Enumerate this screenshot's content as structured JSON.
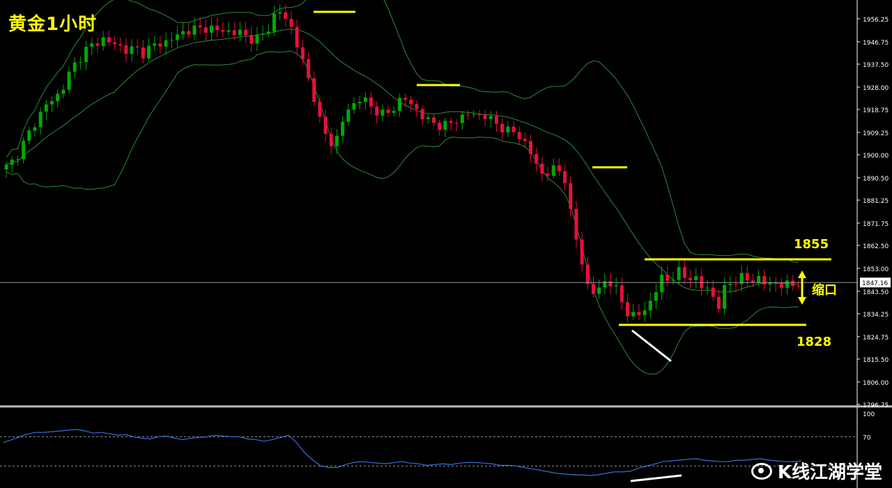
{
  "title": "黄金1小时",
  "watermark": "K线江湖学堂",
  "annotations": {
    "resistance": "1855",
    "support": "1828",
    "squeeze": "缩口"
  },
  "current_price": "1847.16",
  "colors": {
    "bg": "#000000",
    "up": "#00aa00",
    "down": "#e8103a",
    "band": "#2e8b3a",
    "level": "#ffff00",
    "axis": "#ffffff",
    "rsi": "#3a6fd8"
  },
  "chart_data": [
    {
      "type": "candlestick",
      "title": "黄金1小时",
      "y_ticks": [
        "1956.25",
        "1946.75",
        "1937.50",
        "1928.00",
        "1918.75",
        "1909.25",
        "1900.00",
        "1890.50",
        "1881.25",
        "1871.75",
        "1862.50",
        "1853.00",
        "1843.50",
        "1834.25",
        "1824.75",
        "1815.50",
        "1806.00",
        "1796.75"
      ],
      "ylim": [
        1796.75,
        1960
      ],
      "current_price": 1847.16,
      "overlay": "bollinger",
      "levels": [
        {
          "label": "1855",
          "value": 1856
        },
        {
          "label": "1828",
          "value": 1829
        }
      ],
      "price_path": [
        1895,
        1898,
        1904,
        1910,
        1916,
        1921,
        1923,
        1928,
        1935,
        1940,
        1944,
        1946,
        1948,
        1946,
        1945,
        1943,
        1944,
        1942,
        1945,
        1946,
        1947,
        1949,
        1951,
        1952,
        1952,
        1953,
        1951,
        1952,
        1950,
        1951,
        1948,
        1948,
        1950,
        1957,
        1959,
        1955,
        1945,
        1935,
        1925,
        1911,
        1905,
        1907,
        1918,
        1921,
        1924,
        1920,
        1918,
        1916,
        1920,
        1924,
        1921,
        1918,
        1914,
        1913,
        1912,
        1913,
        1915,
        1917,
        1916,
        1917,
        1914,
        1912,
        1910,
        1909,
        1906,
        1900,
        1892,
        1893,
        1894,
        1892,
        1872,
        1858,
        1845,
        1842,
        1848,
        1847,
        1840,
        1834,
        1833,
        1836,
        1841,
        1849,
        1848,
        1852,
        1849,
        1850,
        1845,
        1845,
        1836,
        1846,
        1848,
        1849,
        1848,
        1849,
        1846,
        1847,
        1846,
        1846,
        1847
      ]
    },
    {
      "type": "line",
      "title": "",
      "ylim": [
        0,
        100
      ],
      "y_ticks": [
        "100",
        "70"
      ],
      "levels": [
        70,
        30
      ],
      "values": [
        62,
        66,
        70,
        74,
        76,
        76,
        77,
        78,
        79,
        80,
        78,
        75,
        76,
        74,
        72,
        73,
        70,
        68,
        67,
        70,
        71,
        68,
        66,
        68,
        69,
        70,
        72,
        71,
        70,
        70,
        67,
        66,
        64,
        66,
        69,
        72,
        62,
        48,
        38,
        30,
        28,
        28,
        32,
        35,
        36,
        35,
        34,
        33,
        35,
        36,
        34,
        33,
        31,
        32,
        33,
        32,
        34,
        35,
        35,
        34,
        33,
        31,
        31,
        30,
        28,
        26,
        24,
        22,
        20,
        19,
        18,
        18,
        17,
        18,
        20,
        22,
        22,
        23,
        27,
        30,
        33,
        36,
        37,
        38,
        39,
        40,
        38,
        37,
        36,
        36,
        38,
        38,
        39,
        40,
        38,
        37,
        36,
        36,
        37
      ]
    }
  ]
}
